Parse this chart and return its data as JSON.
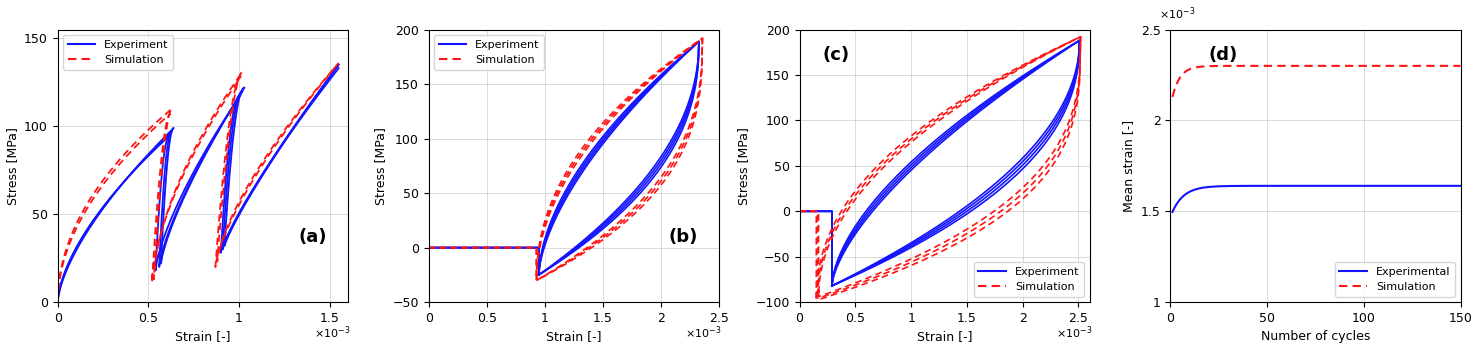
{
  "blue_color": "#1414FF",
  "red_color": "#FF1414",
  "figsize": [
    14.78,
    3.49
  ],
  "dpi": 100,
  "panel_a": {
    "label": "(a)",
    "xlabel": "Strain [-]",
    "ylabel": "Stress [MPa]",
    "xlim": [
      0,
      0.0016
    ],
    "ylim": [
      0,
      155
    ],
    "xticks": [
      0,
      0.0005,
      0.001,
      0.0015
    ],
    "xticklabels": [
      "0",
      "0.5",
      "1",
      "1.5"
    ],
    "yticks": [
      0,
      50,
      100,
      150
    ],
    "legend_loc": "upper left"
  },
  "panel_b": {
    "label": "(b)",
    "xlabel": "Strain [-]",
    "ylabel": "Stress [MPa]",
    "xlim": [
      0,
      0.0025
    ],
    "ylim": [
      -50,
      200
    ],
    "xticks": [
      0,
      0.0005,
      0.001,
      0.0015,
      0.002,
      0.0025
    ],
    "xticklabels": [
      "0",
      "0.5",
      "1",
      "1.5",
      "2",
      "2.5"
    ],
    "yticks": [
      -50,
      0,
      50,
      100,
      150,
      200
    ],
    "legend_loc": "upper left"
  },
  "panel_c": {
    "label": "(c)",
    "xlabel": "Strain [-]",
    "ylabel": "Stress [MPa]",
    "xlim": [
      0,
      0.0026
    ],
    "ylim": [
      -100,
      200
    ],
    "xticks": [
      0,
      0.0005,
      0.001,
      0.0015,
      0.002,
      0.0025
    ],
    "xticklabels": [
      "0",
      "0.5",
      "1",
      "1.5",
      "2",
      "2.5"
    ],
    "yticks": [
      -100,
      -50,
      0,
      50,
      100,
      150,
      200
    ],
    "legend_loc": "lower right"
  },
  "panel_d": {
    "label": "(d)",
    "xlabel": "Number of cycles",
    "ylabel": "Mean strain [-]",
    "xlim": [
      0,
      150
    ],
    "ylim": [
      0.001,
      0.0025
    ],
    "xticks": [
      0,
      50,
      100,
      150
    ],
    "yticks": [
      0.001,
      0.0015,
      0.002,
      0.0025
    ],
    "yticklabels": [
      "1",
      "1.5",
      "2",
      "2.5"
    ],
    "legend_loc": "lower right"
  }
}
